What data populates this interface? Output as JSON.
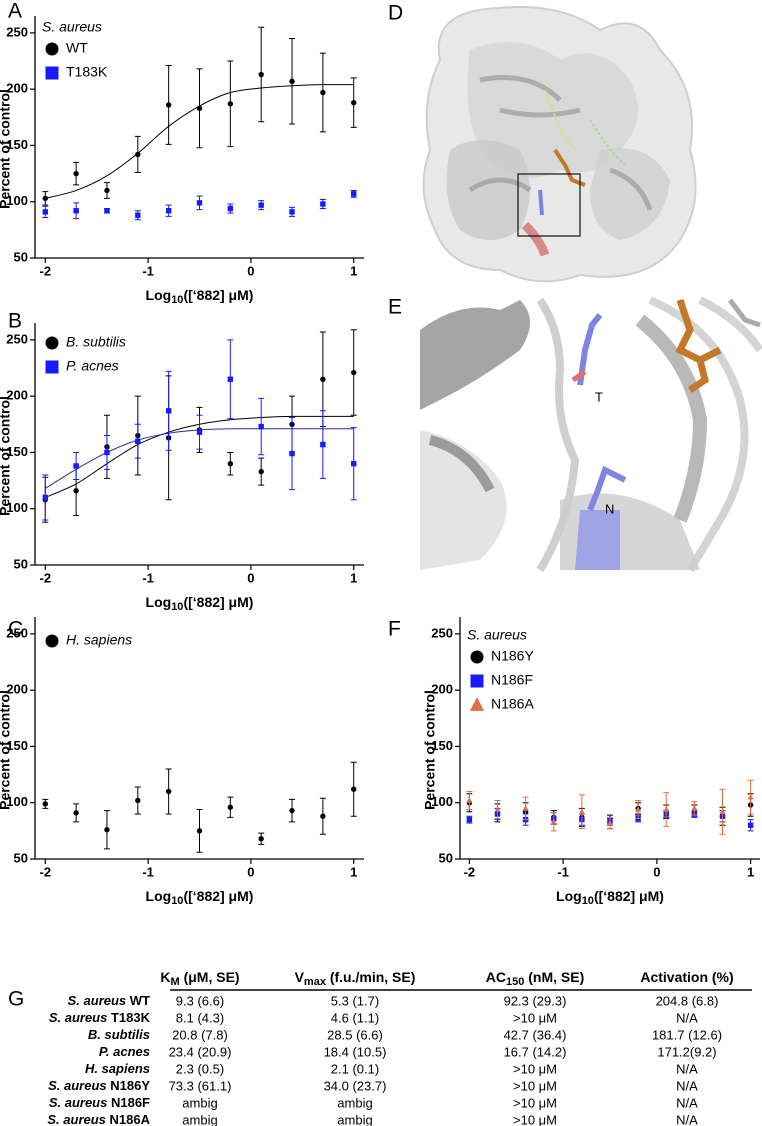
{
  "panels": [
    "A",
    "B",
    "C",
    "D",
    "E",
    "F",
    "G"
  ],
  "structure_labels": [
    "T",
    "N"
  ],
  "chart_data": [
    {
      "type": "scatter",
      "legend_title": "S. aureus",
      "x": [
        -2,
        -1.7,
        -1.4,
        -1.1,
        -0.8,
        -0.5,
        -0.2,
        0.1,
        0.4,
        0.7,
        1.0
      ],
      "xlim": [
        -2.1,
        1.1
      ],
      "xticks": [
        -2,
        -1,
        0,
        1
      ],
      "ylim": [
        50,
        265
      ],
      "yticks": [
        50,
        100,
        150,
        200,
        250
      ],
      "x_label": [
        "Log",
        "10",
        "([‘882] μM)"
      ],
      "y_label": "Percent of control",
      "series": [
        {
          "name": "WT",
          "color": "#000000",
          "marker": "circle",
          "values": [
            103,
            125,
            110,
            142,
            186,
            183,
            187,
            213,
            207,
            197,
            188
          ],
          "errors": [
            6,
            10,
            7,
            16,
            35,
            35,
            38,
            42,
            38,
            35,
            22
          ],
          "fit": [
            103,
            110,
            123,
            143,
            167,
            185,
            197,
            201,
            203,
            204,
            204
          ]
        },
        {
          "name": "T183K",
          "color": "#1a1aff",
          "marker": "square",
          "values": [
            91,
            92,
            92,
            88,
            92,
            99,
            94,
            97,
            91,
            98,
            107
          ],
          "errors": [
            5,
            7,
            2,
            4,
            5,
            6,
            4,
            4,
            4,
            4,
            3
          ]
        }
      ]
    },
    {
      "type": "scatter",
      "x": [
        -2,
        -1.7,
        -1.4,
        -1.1,
        -0.8,
        -0.5,
        -0.2,
        0.1,
        0.4,
        0.7,
        1.0
      ],
      "xlim": [
        -2.1,
        1.1
      ],
      "xticks": [
        -2,
        -1,
        0,
        1
      ],
      "ylim": [
        50,
        265
      ],
      "yticks": [
        50,
        100,
        150,
        200,
        250
      ],
      "x_label": [
        "Log",
        "10",
        "([‘882] μM)"
      ],
      "y_label": "Percent of control",
      "series": [
        {
          "name": "B. subtilis",
          "color": "#000000",
          "marker": "circle",
          "values": [
            108,
            116,
            155,
            165,
            163,
            170,
            140,
            133,
            175,
            215,
            221
          ],
          "errors": [
            20,
            22,
            28,
            35,
            55,
            20,
            10,
            12,
            25,
            42,
            38
          ],
          "fit": [
            110,
            122,
            140,
            157,
            168,
            175,
            179,
            181,
            182,
            182,
            182
          ]
        },
        {
          "name": "P. acnes",
          "color": "#1a1aff",
          "marker": "square",
          "fit_color": "#2b2b9c",
          "values": [
            110,
            138,
            150,
            160,
            187,
            168,
            215,
            173,
            149,
            157,
            140
          ],
          "errors": [
            20,
            12,
            15,
            15,
            35,
            15,
            35,
            25,
            32,
            30,
            32
          ],
          "fit": [
            118,
            135,
            150,
            161,
            167,
            170,
            171,
            171,
            171,
            171,
            171
          ]
        }
      ]
    },
    {
      "type": "scatter",
      "x": [
        -2,
        -1.7,
        -1.4,
        -1.1,
        -0.8,
        -0.5,
        -0.2,
        0.1,
        0.4,
        0.7,
        1.0
      ],
      "xlim": [
        -2.1,
        1.1
      ],
      "xticks": [
        -2,
        -1,
        0,
        1
      ],
      "ylim": [
        50,
        265
      ],
      "yticks": [
        50,
        100,
        150,
        200,
        250
      ],
      "x_label": [
        "Log",
        "10",
        "([‘882] μM)"
      ],
      "y_label": "Percent of control",
      "series": [
        {
          "name": "H. sapiens",
          "color": "#000000",
          "marker": "circle",
          "values": [
            99,
            91,
            76,
            102,
            110,
            75,
            96,
            68,
            93,
            88,
            112
          ],
          "errors": [
            4,
            8,
            17,
            12,
            20,
            19,
            9,
            5,
            10,
            16,
            24
          ]
        }
      ]
    },
    {
      "type": "scatter",
      "legend_title": "S. aureus",
      "x": [
        -2,
        -1.7,
        -1.4,
        -1.1,
        -0.8,
        -0.5,
        -0.2,
        0.1,
        0.4,
        0.7,
        1.0
      ],
      "xlim": [
        -2.1,
        1.1
      ],
      "xticks": [
        -2,
        -1,
        0,
        1
      ],
      "ylim": [
        50,
        265
      ],
      "yticks": [
        50,
        100,
        150,
        200,
        250
      ],
      "x_label": [
        "Log",
        "10",
        "([‘882] μM)"
      ],
      "y_label": "Percent of control",
      "series": [
        {
          "name": "N186Y",
          "color": "#000000",
          "marker": "circle",
          "values": [
            100,
            91,
            92,
            87,
            87,
            83,
            95,
            92,
            93,
            88,
            98
          ],
          "errors": [
            8,
            8,
            8,
            6,
            8,
            6,
            5,
            6,
            5,
            8,
            10
          ]
        },
        {
          "name": "N186F",
          "color": "#1a1aff",
          "marker": "square",
          "values": [
            85,
            90,
            85,
            86,
            85,
            83,
            86,
            90,
            90,
            88,
            80
          ],
          "errors": [
            3,
            5,
            5,
            5,
            5,
            3,
            3,
            3,
            3,
            5,
            5
          ]
        },
        {
          "name": "N186A",
          "color": "#e07040",
          "marker": "triangle",
          "values": [
            102,
            94,
            95,
            83,
            92,
            82,
            94,
            94,
            95,
            92,
            105
          ],
          "errors": [
            8,
            8,
            10,
            8,
            15,
            5,
            8,
            15,
            6,
            20,
            15
          ]
        }
      ]
    }
  ],
  "table": {
    "headers": [
      [
        "K",
        "M",
        " (μM, SE)"
      ],
      [
        "V",
        "max",
        " (f.u./min, SE)"
      ],
      [
        "AC",
        "150",
        " (nM, SE)"
      ],
      [
        "Activation (%)"
      ]
    ],
    "rows": [
      {
        "label": [
          "S. aureus",
          " WT"
        ],
        "cells": [
          "9.3 (6.6)",
          "5.3 (1.7)",
          "92.3 (29.3)",
          "204.8 (6.8)"
        ]
      },
      {
        "label": [
          "S. aureus",
          " T183K"
        ],
        "cells": [
          "8.1 (4.3)",
          "4.6 (1.1)",
          ">10 μM",
          "N/A"
        ]
      },
      {
        "label": [
          "B. subtilis"
        ],
        "cells": [
          "20.8 (7.8)",
          "28.5 (6.6)",
          "42.7 (36.4)",
          "181.7 (12.6)"
        ]
      },
      {
        "label": [
          "P. acnes"
        ],
        "cells": [
          "23.4 (20.9)",
          "18.4 (10.5)",
          "16.7 (14.2)",
          "171.2(9.2)"
        ]
      },
      {
        "label": [
          "H. sapiens"
        ],
        "cells": [
          "2.3 (0.5)",
          "2.1 (0.1)",
          ">10 μM",
          "N/A"
        ]
      },
      {
        "label": [
          "S. aureus",
          " N186Y"
        ],
        "cells": [
          "73.3 (61.1)",
          "34.0 (23.7)",
          ">10 μM",
          "N/A"
        ]
      },
      {
        "label": [
          "S. aureus",
          " N186F"
        ],
        "cells": [
          "ambig",
          "ambig",
          ">10 μM",
          "N/A"
        ]
      },
      {
        "label": [
          "S. aureus",
          " N186A"
        ],
        "cells": [
          "ambig",
          "ambig",
          ">10 μM",
          "N/A"
        ]
      }
    ]
  }
}
